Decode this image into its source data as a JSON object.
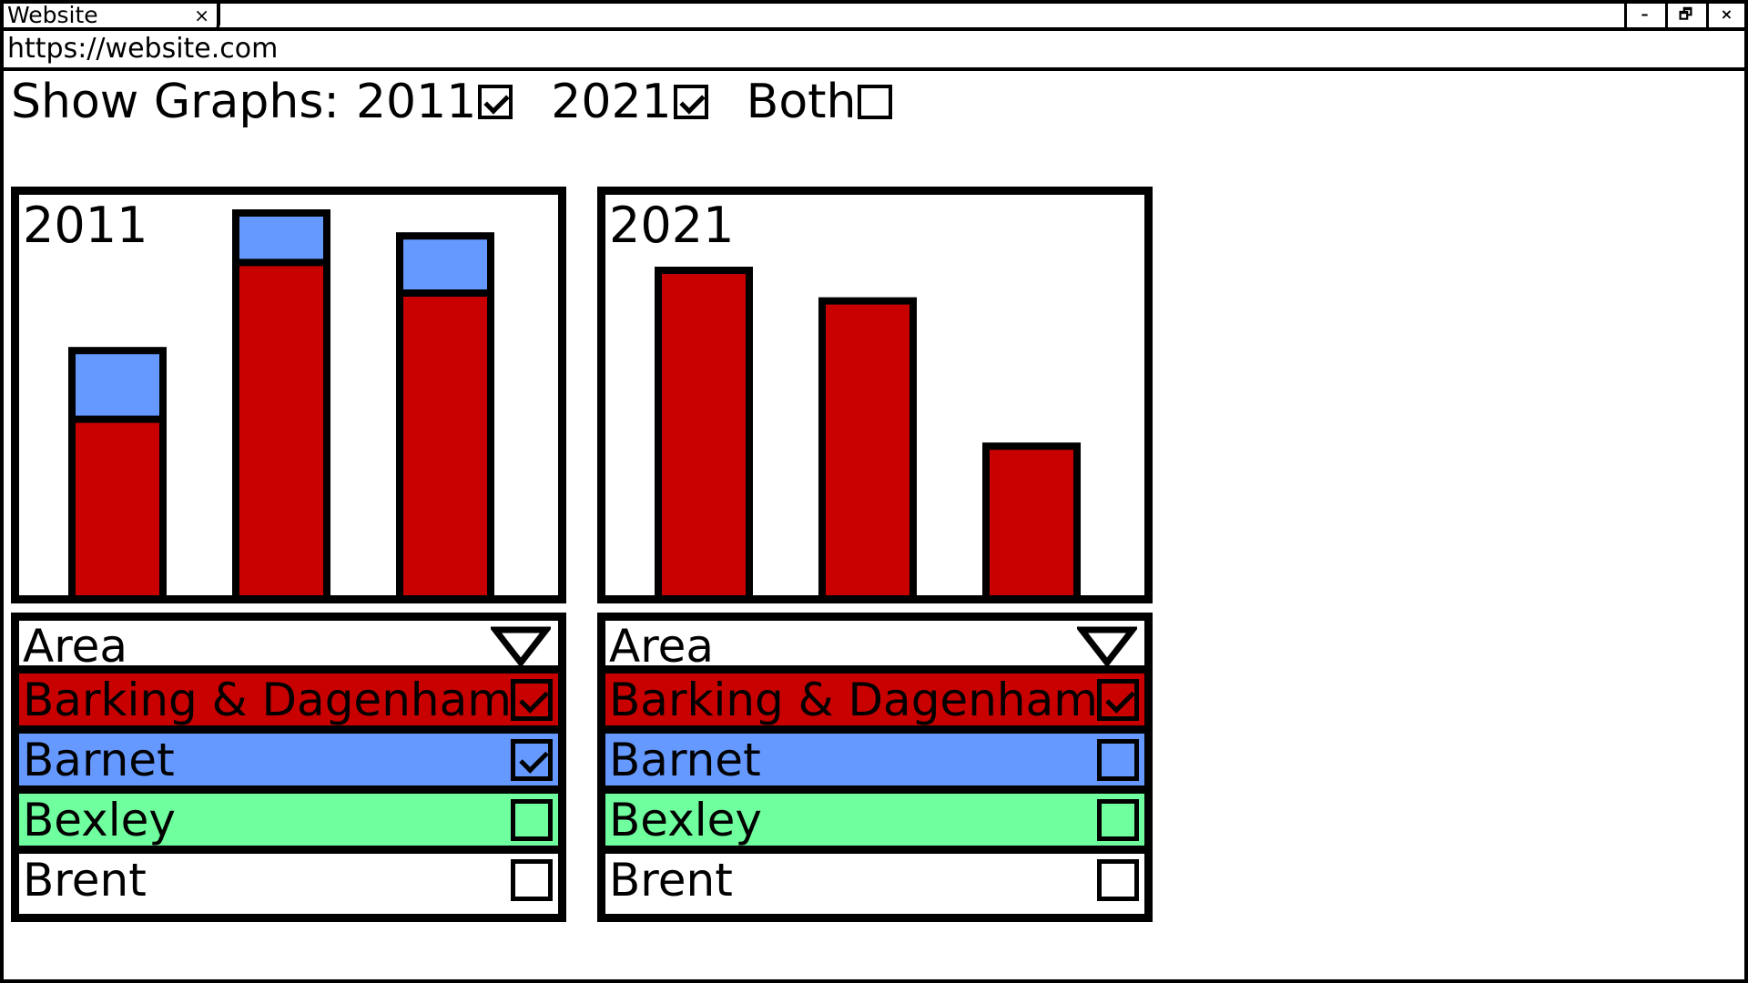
{
  "browser": {
    "tab_title": "Website",
    "tab_close": "×",
    "minimize": "–",
    "restore": "🗗",
    "close": "×",
    "url": "https://website.com"
  },
  "controls": {
    "show_graphs_label": "Show Graphs:",
    "options": [
      {
        "label": "2011",
        "checked": true
      },
      {
        "label": "2021",
        "checked": true
      },
      {
        "label": "Both",
        "checked": false
      }
    ]
  },
  "colors": {
    "red": "#c80000",
    "blue": "#6699ff",
    "green": "#70ff9e",
    "white": "#ffffff"
  },
  "panels": [
    {
      "title": "2011",
      "dropdown_label": "Area",
      "areas": [
        {
          "name": "Barking & Dagenham",
          "color": "#c80000",
          "checked": true
        },
        {
          "name": "Barnet",
          "color": "#6699ff",
          "checked": true
        },
        {
          "name": "Bexley",
          "color": "#70ff9e",
          "checked": false
        },
        {
          "name": "Brent",
          "color": "#ffffff",
          "checked": false
        }
      ]
    },
    {
      "title": "2021",
      "dropdown_label": "Area",
      "areas": [
        {
          "name": "Barking & Dagenham",
          "color": "#c80000",
          "checked": true
        },
        {
          "name": "Barnet",
          "color": "#6699ff",
          "checked": false
        },
        {
          "name": "Bexley",
          "color": "#70ff9e",
          "checked": false
        },
        {
          "name": "Brent",
          "color": "#ffffff",
          "checked": false
        }
      ]
    }
  ],
  "chart_data": [
    {
      "type": "bar",
      "title": "2011",
      "stacked": true,
      "categories": [
        "",
        "",
        ""
      ],
      "ylim": [
        0,
        100
      ],
      "series": [
        {
          "name": "Barking & Dagenham",
          "color": "#c80000",
          "values": [
            47,
            88,
            80
          ]
        },
        {
          "name": "Barnet",
          "color": "#6699ff",
          "values": [
            17,
            12,
            14
          ]
        }
      ]
    },
    {
      "type": "bar",
      "title": "2021",
      "stacked": true,
      "categories": [
        "",
        "",
        ""
      ],
      "ylim": [
        0,
        100
      ],
      "series": [
        {
          "name": "Barking & Dagenham",
          "color": "#c80000",
          "values": [
            85,
            77,
            39
          ]
        }
      ]
    }
  ]
}
